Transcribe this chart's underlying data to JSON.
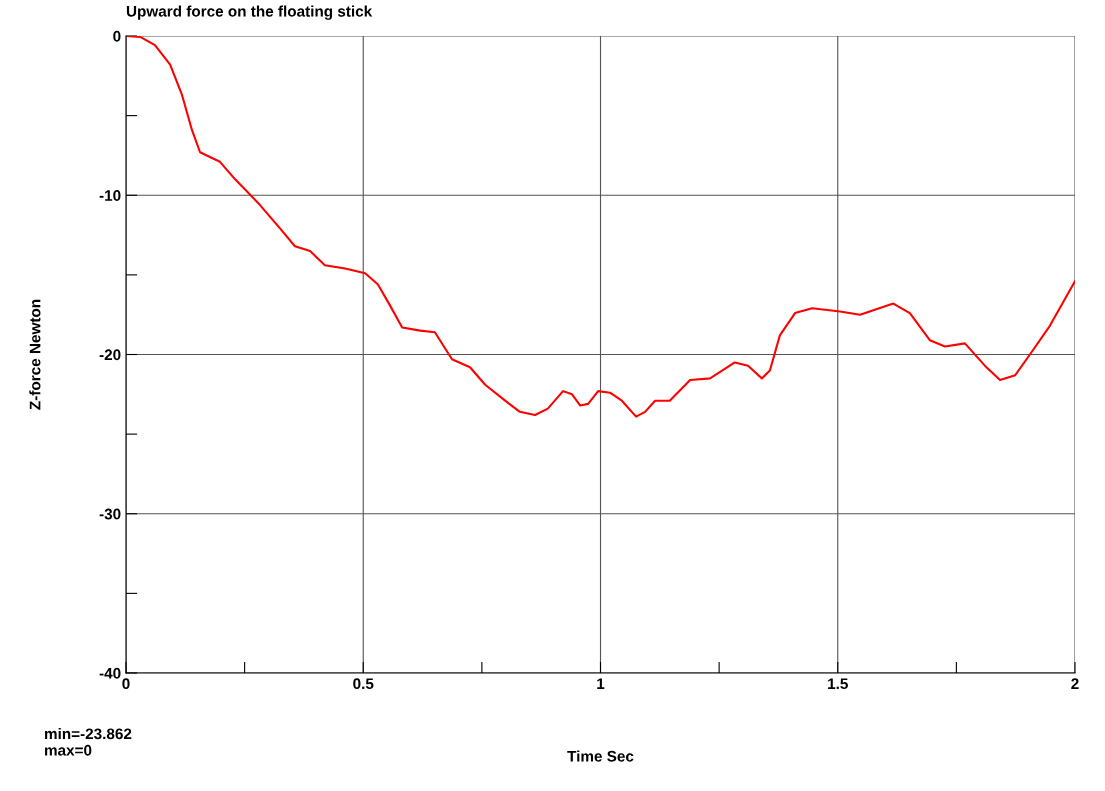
{
  "chart_data": {
    "type": "line",
    "title": "Upward force on the floating stick",
    "xlabel": "Time Sec",
    "ylabel": "Z-force Newton",
    "annotations": [
      "min=-23.862\nmax=0"
    ],
    "x": [
      0,
      0.03,
      0.061,
      0.093,
      0.118,
      0.139,
      0.156,
      0.177,
      0.198,
      0.23,
      0.282,
      0.325,
      0.356,
      0.388,
      0.419,
      0.462,
      0.504,
      0.531,
      0.556,
      0.582,
      0.62,
      0.651,
      0.687,
      0.725,
      0.757,
      0.799,
      0.83,
      0.862,
      0.889,
      0.921,
      0.94,
      0.957,
      0.974,
      0.995,
      1.02,
      1.045,
      1.075,
      1.094,
      1.115,
      1.146,
      1.189,
      1.231,
      1.283,
      1.311,
      1.34,
      1.357,
      1.378,
      1.41,
      1.446,
      1.505,
      1.547,
      1.617,
      1.652,
      1.694,
      1.726,
      1.768,
      1.81,
      1.842,
      1.874,
      1.905,
      1.947,
      2.0
    ],
    "series": [
      {
        "color": "#ff0000",
        "values": [
          0,
          -0.06,
          -0.57,
          -1.8,
          -3.7,
          -5.9,
          -7.3,
          -7.6,
          -7.9,
          -9.0,
          -10.6,
          -12.1,
          -13.2,
          -13.5,
          -14.4,
          -14.6,
          -14.9,
          -15.6,
          -16.9,
          -18.3,
          -18.5,
          -18.6,
          -20.3,
          -20.8,
          -21.9,
          -22.9,
          -23.6,
          -23.8,
          -23.4,
          -22.3,
          -22.5,
          -23.2,
          -23.1,
          -22.3,
          -22.4,
          -22.9,
          -23.9,
          -23.6,
          -22.9,
          -22.9,
          -21.6,
          -21.5,
          -20.5,
          -20.7,
          -21.5,
          -21.0,
          -18.8,
          -17.4,
          -17.1,
          -17.3,
          -17.5,
          -16.8,
          -17.4,
          -19.1,
          -19.5,
          -19.3,
          -20.7,
          -21.6,
          -21.3,
          -20.0,
          -18.2,
          -15.4
        ]
      }
    ],
    "xlim": [
      0,
      2
    ],
    "ylim": [
      -40,
      0
    ],
    "xticks": [
      0,
      {
        "value": 0.25,
        "label": null
      },
      0.5,
      {
        "value": 0.75,
        "label": null
      },
      1,
      {
        "value": 1.25,
        "label": null
      },
      1.5,
      {
        "value": 1.75,
        "label": null
      },
      2
    ],
    "yticks": [
      -40,
      {
        "value": -35,
        "label": null
      },
      -30,
      {
        "value": -25,
        "label": null
      },
      -20,
      {
        "value": -15,
        "label": null
      },
      -10,
      {
        "value": -5,
        "label": null
      },
      0
    ],
    "grid": true,
    "legend": false,
    "marker": "none",
    "line_style": "solid"
  }
}
